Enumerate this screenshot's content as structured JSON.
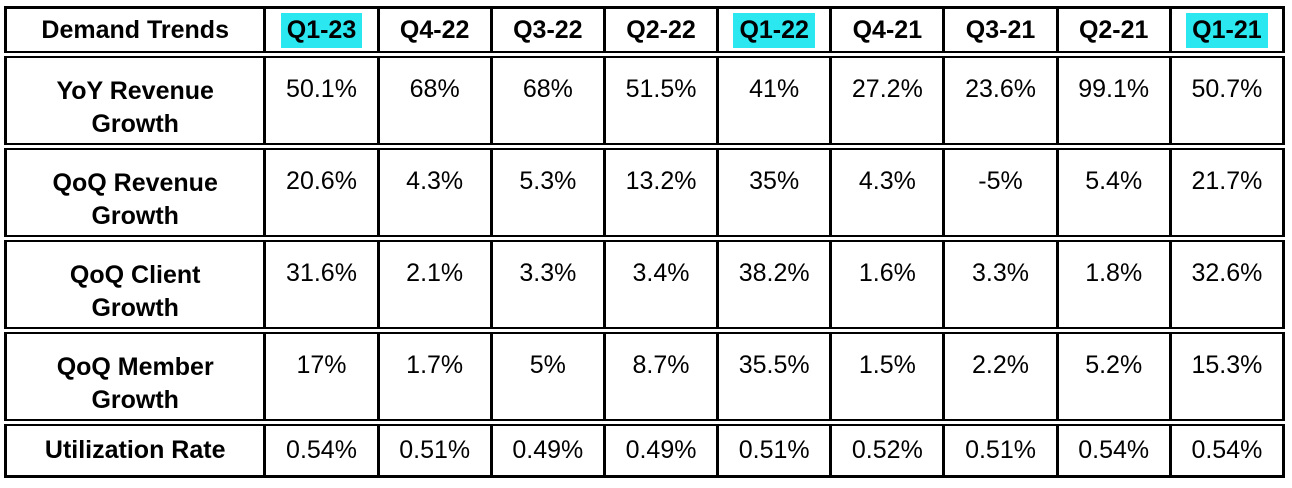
{
  "colors": {
    "highlight": "#2BE7EF",
    "border": "#000000",
    "text": "#000000",
    "background": "#FFFFFF"
  },
  "chart_data": {
    "type": "table",
    "title": "Demand Trends",
    "columns": [
      "Q1-23",
      "Q4-22",
      "Q3-22",
      "Q2-22",
      "Q1-22",
      "Q4-21",
      "Q3-21",
      "Q2-21",
      "Q1-21"
    ],
    "highlighted_columns": [
      0,
      4,
      8
    ],
    "highlight_color": "#2BE7EF",
    "rows": [
      {
        "label": "YoY Revenue Growth",
        "values": [
          "50.1%",
          "68%",
          "68%",
          "51.5%",
          "41%",
          "27.2%",
          "23.6%",
          "99.1%",
          "50.7%"
        ]
      },
      {
        "label": "QoQ Revenue Growth",
        "values": [
          "20.6%",
          "4.3%",
          "5.3%",
          "13.2%",
          "35%",
          "4.3%",
          "-5%",
          "5.4%",
          "21.7%"
        ]
      },
      {
        "label": "QoQ Client Growth",
        "values": [
          "31.6%",
          "2.1%",
          "3.3%",
          "3.4%",
          "38.2%",
          "1.6%",
          "3.3%",
          "1.8%",
          "32.6%"
        ]
      },
      {
        "label": "QoQ Member Growth",
        "values": [
          "17%",
          "1.7%",
          "5%",
          "8.7%",
          "35.5%",
          "1.5%",
          "2.2%",
          "5.2%",
          "15.3%"
        ]
      },
      {
        "label": "Utilization Rate",
        "values": [
          "0.54%",
          "0.51%",
          "0.49%",
          "0.49%",
          "0.51%",
          "0.52%",
          "0.51%",
          "0.54%",
          "0.54%"
        ]
      }
    ]
  }
}
